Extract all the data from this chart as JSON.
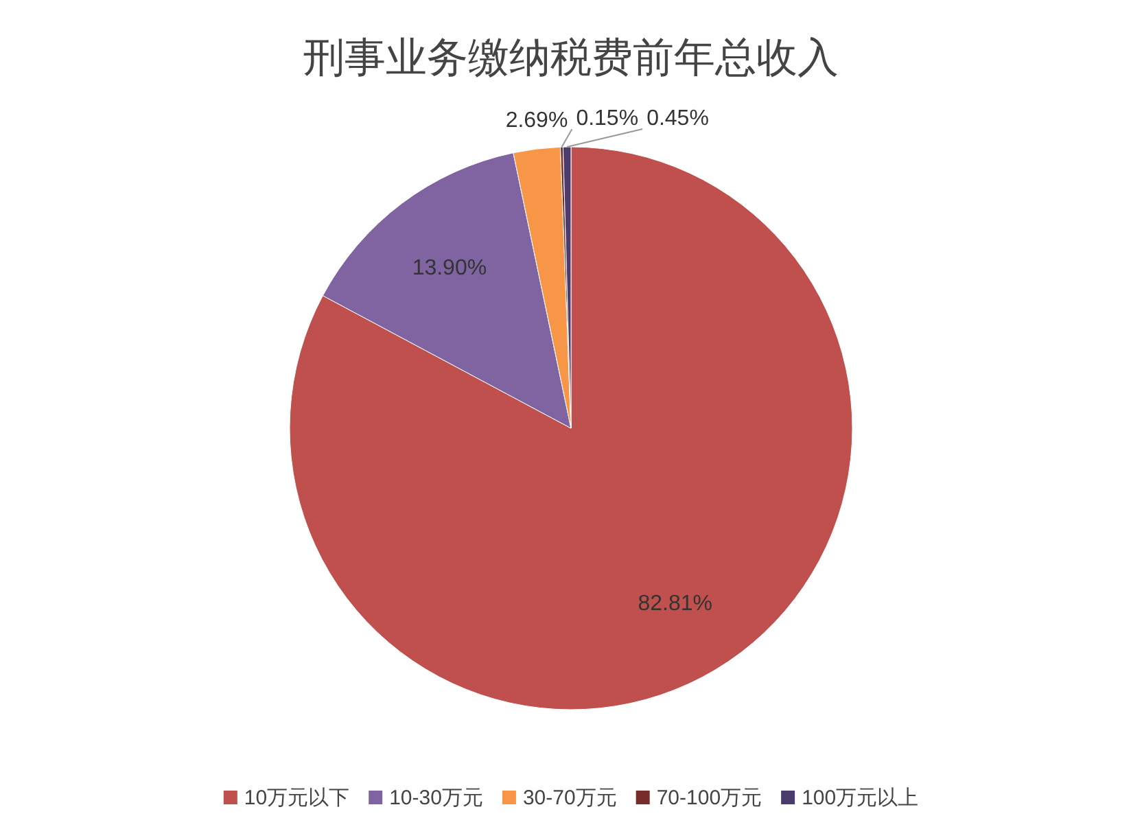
{
  "chart_data": {
    "type": "pie",
    "title": "刑事业务缴纳税费前年总收入",
    "categories": [
      "10万元以下",
      "10-30万元",
      "30-70万元",
      "70-100万元",
      "100万元以上"
    ],
    "values": [
      82.81,
      13.9,
      2.69,
      0.15,
      0.45
    ],
    "value_labels": [
      "82.81%",
      "13.90%",
      "2.69%",
      "0.15%",
      "0.45%"
    ],
    "colors": [
      "#c0504d",
      "#8064a2",
      "#f79646",
      "#772c2a",
      "#4b3c6d"
    ],
    "legend": "bottom"
  }
}
